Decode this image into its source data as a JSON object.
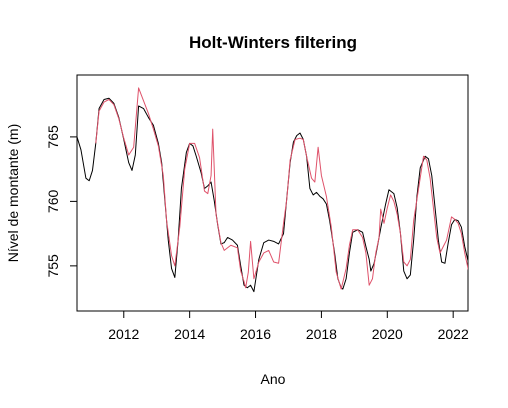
{
  "chart_data": {
    "type": "line",
    "title": "Holt-Winters filtering",
    "xlabel": "Ano",
    "ylabel": "Nível de montante (m)",
    "xlim": [
      2010.58,
      2022.45
    ],
    "ylim": [
      751.5,
      769.8
    ],
    "x_ticks": [
      2012,
      2014,
      2016,
      2018,
      2020,
      2022
    ],
    "x_tick_labels": [
      "2012",
      "2014",
      "2016",
      "2018",
      "2020",
      "2022"
    ],
    "y_ticks": [
      755,
      760,
      765
    ],
    "y_tick_labels": [
      "755",
      "760",
      "765"
    ],
    "grid": false,
    "legend": "none",
    "series": [
      {
        "color": "#000000",
        "points": [
          [
            2010.58,
            765.0
          ],
          [
            2010.7,
            764.0
          ],
          [
            2010.85,
            761.8
          ],
          [
            2010.95,
            761.6
          ],
          [
            2011.05,
            762.4
          ],
          [
            2011.15,
            764.5
          ],
          [
            2011.25,
            767.2
          ],
          [
            2011.4,
            767.9
          ],
          [
            2011.55,
            768.0
          ],
          [
            2011.7,
            767.6
          ],
          [
            2011.85,
            766.5
          ],
          [
            2012.0,
            764.8
          ],
          [
            2012.15,
            763.0
          ],
          [
            2012.25,
            762.4
          ],
          [
            2012.35,
            763.6
          ],
          [
            2012.45,
            767.4
          ],
          [
            2012.6,
            767.2
          ],
          [
            2012.75,
            766.5
          ],
          [
            2012.9,
            765.9
          ],
          [
            2013.05,
            764.5
          ],
          [
            2013.15,
            763.0
          ],
          [
            2013.25,
            760.0
          ],
          [
            2013.35,
            757.0
          ],
          [
            2013.45,
            754.8
          ],
          [
            2013.55,
            754.1
          ],
          [
            2013.65,
            757.0
          ],
          [
            2013.75,
            761.0
          ],
          [
            2013.9,
            763.8
          ],
          [
            2014.0,
            764.5
          ],
          [
            2014.1,
            764.3
          ],
          [
            2014.2,
            763.5
          ],
          [
            2014.35,
            762.2
          ],
          [
            2014.45,
            761.0
          ],
          [
            2014.55,
            761.2
          ],
          [
            2014.65,
            761.5
          ],
          [
            2014.75,
            760.0
          ],
          [
            2014.85,
            758.2
          ],
          [
            2014.95,
            756.7
          ],
          [
            2015.05,
            756.8
          ],
          [
            2015.15,
            757.2
          ],
          [
            2015.3,
            757.0
          ],
          [
            2015.45,
            756.6
          ],
          [
            2015.55,
            755.0
          ],
          [
            2015.65,
            753.5
          ],
          [
            2015.75,
            753.3
          ],
          [
            2015.85,
            753.5
          ],
          [
            2015.95,
            753.0
          ],
          [
            2016.1,
            755.5
          ],
          [
            2016.25,
            756.8
          ],
          [
            2016.4,
            757.0
          ],
          [
            2016.55,
            756.9
          ],
          [
            2016.7,
            756.7
          ],
          [
            2016.85,
            757.5
          ],
          [
            2016.95,
            760.3
          ],
          [
            2017.05,
            763.0
          ],
          [
            2017.15,
            764.6
          ],
          [
            2017.25,
            765.1
          ],
          [
            2017.35,
            765.3
          ],
          [
            2017.45,
            764.8
          ],
          [
            2017.55,
            763.5
          ],
          [
            2017.65,
            761.0
          ],
          [
            2017.75,
            760.5
          ],
          [
            2017.85,
            760.7
          ],
          [
            2017.95,
            760.4
          ],
          [
            2018.05,
            760.2
          ],
          [
            2018.15,
            759.8
          ],
          [
            2018.25,
            758.5
          ],
          [
            2018.4,
            756.0
          ],
          [
            2018.5,
            754.0
          ],
          [
            2018.6,
            753.3
          ],
          [
            2018.65,
            753.2
          ],
          [
            2018.75,
            754.0
          ],
          [
            2018.85,
            756.0
          ],
          [
            2018.95,
            757.6
          ],
          [
            2019.1,
            757.8
          ],
          [
            2019.25,
            757.6
          ],
          [
            2019.35,
            756.5
          ],
          [
            2019.45,
            755.5
          ],
          [
            2019.5,
            754.6
          ],
          [
            2019.6,
            755.2
          ],
          [
            2019.7,
            756.5
          ],
          [
            2019.8,
            757.9
          ],
          [
            2019.95,
            759.8
          ],
          [
            2020.05,
            760.9
          ],
          [
            2020.2,
            760.6
          ],
          [
            2020.3,
            759.5
          ],
          [
            2020.4,
            757.5
          ],
          [
            2020.5,
            754.6
          ],
          [
            2020.6,
            754.0
          ],
          [
            2020.7,
            754.3
          ],
          [
            2020.8,
            757.0
          ],
          [
            2020.9,
            760.4
          ],
          [
            2021.0,
            762.6
          ],
          [
            2021.15,
            763.5
          ],
          [
            2021.25,
            763.3
          ],
          [
            2021.35,
            762.0
          ],
          [
            2021.45,
            759.5
          ],
          [
            2021.55,
            757.0
          ],
          [
            2021.65,
            755.3
          ],
          [
            2021.75,
            755.2
          ],
          [
            2021.85,
            756.8
          ],
          [
            2021.95,
            758.2
          ],
          [
            2022.05,
            758.6
          ],
          [
            2022.15,
            758.5
          ],
          [
            2022.25,
            758.0
          ],
          [
            2022.35,
            756.5
          ],
          [
            2022.45,
            755.4
          ],
          [
            2022.55,
            754.3
          ],
          [
            2022.65,
            755.0
          ],
          [
            2022.75,
            756.3
          ],
          [
            2022.8,
            757.1
          ]
        ]
      },
      {
        "color": "#DF536B",
        "points": [
          [
            2011.15,
            764.5
          ],
          [
            2011.25,
            767.0
          ],
          [
            2011.4,
            767.7
          ],
          [
            2011.55,
            767.9
          ],
          [
            2011.7,
            767.5
          ],
          [
            2011.85,
            766.4
          ],
          [
            2012.0,
            764.9
          ],
          [
            2012.15,
            763.6
          ],
          [
            2012.3,
            764.2
          ],
          [
            2012.45,
            768.8
          ],
          [
            2012.6,
            767.8
          ],
          [
            2012.75,
            766.8
          ],
          [
            2012.9,
            765.6
          ],
          [
            2013.05,
            764.3
          ],
          [
            2013.2,
            762.0
          ],
          [
            2013.3,
            758.5
          ],
          [
            2013.45,
            755.8
          ],
          [
            2013.55,
            755.0
          ],
          [
            2013.7,
            758.0
          ],
          [
            2013.85,
            762.5
          ],
          [
            2014.0,
            764.5
          ],
          [
            2014.15,
            764.5
          ],
          [
            2014.3,
            763.4
          ],
          [
            2014.45,
            760.8
          ],
          [
            2014.55,
            760.6
          ],
          [
            2014.65,
            762.0
          ],
          [
            2014.7,
            765.6
          ],
          [
            2014.8,
            759.0
          ],
          [
            2014.95,
            756.8
          ],
          [
            2015.05,
            756.2
          ],
          [
            2015.25,
            756.6
          ],
          [
            2015.45,
            756.4
          ],
          [
            2015.55,
            754.6
          ],
          [
            2015.65,
            753.8
          ],
          [
            2015.7,
            753.3
          ],
          [
            2015.78,
            754.5
          ],
          [
            2015.85,
            756.9
          ],
          [
            2015.95,
            754.0
          ],
          [
            2016.1,
            755.3
          ],
          [
            2016.25,
            756.0
          ],
          [
            2016.4,
            756.2
          ],
          [
            2016.55,
            755.3
          ],
          [
            2016.7,
            755.2
          ],
          [
            2016.85,
            758.3
          ],
          [
            2016.95,
            760.2
          ],
          [
            2017.05,
            763.2
          ],
          [
            2017.2,
            764.8
          ],
          [
            2017.35,
            764.9
          ],
          [
            2017.45,
            764.8
          ],
          [
            2017.55,
            763.5
          ],
          [
            2017.7,
            761.8
          ],
          [
            2017.8,
            761.5
          ],
          [
            2017.9,
            764.2
          ],
          [
            2018.0,
            762.0
          ],
          [
            2018.15,
            760.4
          ],
          [
            2018.3,
            758.0
          ],
          [
            2018.45,
            754.5
          ],
          [
            2018.6,
            753.2
          ],
          [
            2018.75,
            754.8
          ],
          [
            2018.85,
            756.6
          ],
          [
            2018.95,
            757.8
          ],
          [
            2019.1,
            757.8
          ],
          [
            2019.25,
            757.2
          ],
          [
            2019.35,
            756.0
          ],
          [
            2019.45,
            753.5
          ],
          [
            2019.55,
            754.0
          ],
          [
            2019.65,
            756.0
          ],
          [
            2019.75,
            757.2
          ],
          [
            2019.8,
            759.4
          ],
          [
            2019.9,
            758.3
          ],
          [
            2020.0,
            759.5
          ],
          [
            2020.1,
            760.5
          ],
          [
            2020.2,
            760.0
          ],
          [
            2020.3,
            759.0
          ],
          [
            2020.4,
            757.5
          ],
          [
            2020.5,
            755.3
          ],
          [
            2020.6,
            755.0
          ],
          [
            2020.7,
            755.5
          ],
          [
            2020.8,
            758.5
          ],
          [
            2020.95,
            761.0
          ],
          [
            2021.1,
            763.5
          ],
          [
            2021.2,
            763.2
          ],
          [
            2021.3,
            761.8
          ],
          [
            2021.4,
            759.5
          ],
          [
            2021.5,
            757.2
          ],
          [
            2021.6,
            756.0
          ],
          [
            2021.7,
            756.5
          ],
          [
            2021.8,
            757.0
          ],
          [
            2021.95,
            758.8
          ],
          [
            2022.05,
            758.6
          ],
          [
            2022.15,
            758.3
          ],
          [
            2022.25,
            757.5
          ],
          [
            2022.35,
            756.0
          ],
          [
            2022.45,
            754.8
          ],
          [
            2022.55,
            753.8
          ],
          [
            2022.62,
            752.8
          ],
          [
            2022.7,
            754.5
          ],
          [
            2022.8,
            756.8
          ]
        ]
      }
    ]
  }
}
